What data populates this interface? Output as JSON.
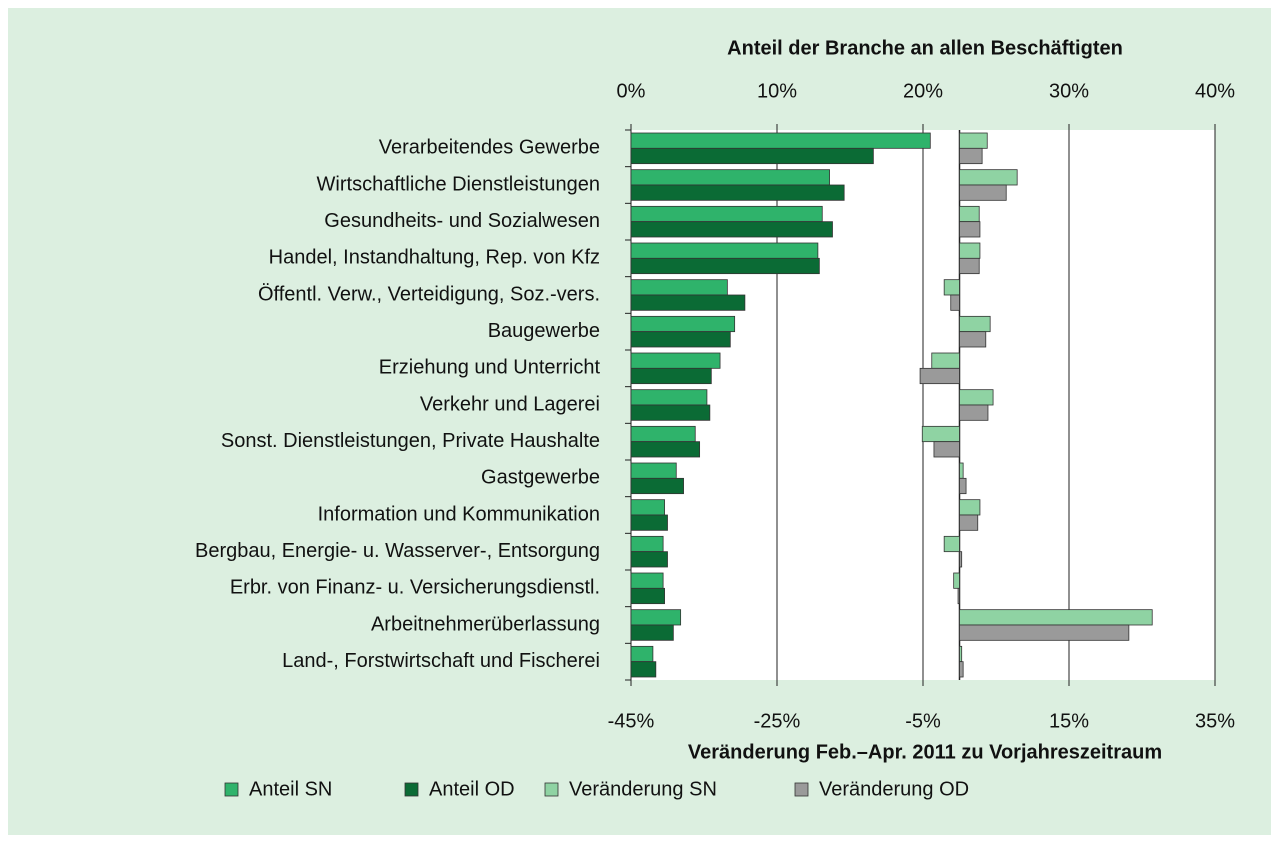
{
  "chart_data": {
    "type": "bar",
    "orientation": "horizontal",
    "xlabel": "Anteil der Branche an allen Beschäftigten",
    "x2label": "Veränderung Feb.–Apr. 2011 zu Vorjahreszeitraum",
    "categories": [
      "Verarbeitendes Gewerbe",
      "Wirtschaftliche Dienstleistungen",
      "Gesundheits- und Sozialwesen",
      "Handel, Instandhaltung, Rep. von Kfz",
      "Öffentl. Verw., Verteidigung, Soz.-vers.",
      "Baugewerbe",
      "Erziehung und Unterricht",
      "Verkehr und Lagerei",
      "Sonst. Dienstleistungen, Private Haushalte",
      "Gastgewerbe",
      "Information und Kommunikation",
      "Bergbau, Energie- u. Wasserver-, Entsorgung",
      "Erbr. von Finanz- u. Versicherungsdienstl.",
      "Arbeitnehmerüberlassung",
      "Land-, Forstwirtschaft und Fischerei"
    ],
    "xlim": [
      0,
      40
    ],
    "xticks": [
      {
        "value": 0,
        "label": "0%"
      },
      {
        "value": 10,
        "label": "10%"
      },
      {
        "value": 20,
        "label": "20%"
      },
      {
        "value": 30,
        "label": "30%"
      },
      {
        "value": 40,
        "label": "40%"
      }
    ],
    "x2lim": [
      -45,
      35
    ],
    "x2ticks": [
      {
        "value": -45,
        "label": "-45%"
      },
      {
        "value": -25,
        "label": "-25%"
      },
      {
        "value": -5,
        "label": "-5%"
      },
      {
        "value": 15,
        "label": "15%"
      },
      {
        "value": 35,
        "label": "35%"
      }
    ],
    "grid": true,
    "series": [
      {
        "name": "Anteil SN",
        "color": "#2fb36b",
        "axis": "x",
        "values": [
          20.5,
          13.6,
          13.1,
          12.8,
          6.6,
          7.1,
          6.1,
          5.2,
          4.4,
          3.1,
          2.3,
          2.2,
          2.2,
          3.4,
          1.5
        ]
      },
      {
        "name": "Anteil OD",
        "color": "#0b6b35",
        "axis": "x",
        "values": [
          16.6,
          14.6,
          13.8,
          12.9,
          7.8,
          6.8,
          5.5,
          5.4,
          4.7,
          3.6,
          2.5,
          2.5,
          2.3,
          2.9,
          1.7
        ]
      },
      {
        "name": "Veränderung SN",
        "color": "#8fd3a3",
        "axis": "x2",
        "values": [
          3.8,
          7.9,
          2.7,
          2.8,
          -2.1,
          4.2,
          -3.8,
          4.6,
          -5.1,
          0.5,
          2.8,
          -2.1,
          -0.8,
          26.4,
          0.3
        ]
      },
      {
        "name": "Veränderung OD",
        "color": "#9a9a9a",
        "axis": "x2",
        "values": [
          3.1,
          6.4,
          2.8,
          2.7,
          -1.2,
          3.6,
          -5.4,
          3.9,
          -3.5,
          0.9,
          2.5,
          0.3,
          -0.2,
          23.2,
          0.5
        ]
      }
    ]
  }
}
